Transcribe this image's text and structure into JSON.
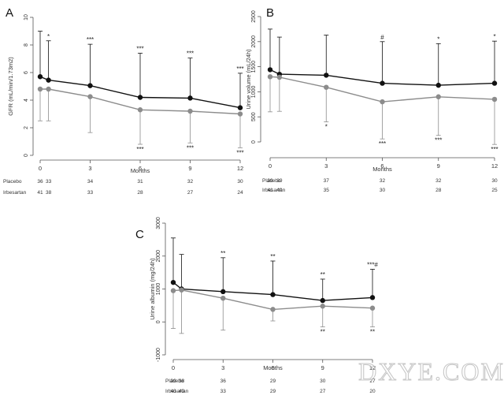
{
  "chart_data": [
    {
      "panel_label": "A",
      "type": "line",
      "xlabel": "Months",
      "ylabel": "GFR (mL/min/1.73m2)",
      "x": [
        0,
        0.5,
        3,
        6,
        9,
        12
      ],
      "xticks": [
        "0",
        "3",
        "6",
        "9",
        "12"
      ],
      "yticks": [
        "0",
        "2",
        "4",
        "6",
        "8",
        "10"
      ],
      "ylim": [
        0,
        10
      ],
      "series": [
        {
          "name": "Placebo",
          "color": "#111111",
          "mean": [
            5.7,
            5.45,
            5.05,
            4.2,
            4.15,
            3.45
          ],
          "upper": [
            9.0,
            8.3,
            8.05,
            7.4,
            7.05,
            5.95
          ],
          "lower": null
        },
        {
          "name": "Irbesartan",
          "color": "#8c8c8c",
          "mean": [
            4.8,
            4.8,
            4.25,
            3.3,
            3.2,
            3.0
          ],
          "upper": null,
          "lower": [
            2.5,
            2.5,
            1.65,
            0.8,
            0.9,
            0.55
          ]
        }
      ],
      "annotations_above": [
        "",
        "*",
        "***",
        "***",
        "***",
        "***"
      ],
      "annotations_below": [
        "",
        "",
        "",
        "***",
        "***",
        "***"
      ],
      "table": [
        {
          "label": "Placebo",
          "values": [
            "36",
            "33",
            "34",
            "31",
            "32",
            "30"
          ]
        },
        {
          "label": "Irbesartan",
          "values": [
            "41",
            "38",
            "33",
            "28",
            "27",
            "24"
          ]
        }
      ]
    },
    {
      "panel_label": "B",
      "type": "line",
      "xlabel": "Months",
      "ylabel": "Urine volume (mL/24h)",
      "x": [
        0,
        0.5,
        3,
        6,
        9,
        12
      ],
      "xticks": [
        "0",
        "3",
        "6",
        "9",
        "12"
      ],
      "yticks": [
        "0",
        "500",
        "1000",
        "1500",
        "2000",
        "2500"
      ],
      "ylim": [
        0,
        2500
      ],
      "series": [
        {
          "name": "Placebo",
          "color": "#111111",
          "mean": [
            1440,
            1350,
            1330,
            1170,
            1130,
            1170
          ],
          "upper": [
            2250,
            2090,
            2130,
            2000,
            1960,
            2010
          ],
          "lower": null
        },
        {
          "name": "Irbesartan",
          "color": "#8c8c8c",
          "mean": [
            1300,
            1290,
            1090,
            800,
            900,
            850
          ],
          "upper": null,
          "lower": [
            600,
            610,
            400,
            60,
            130,
            -50
          ]
        }
      ],
      "annotations_above": [
        "",
        "",
        "",
        "#",
        "*",
        "*"
      ],
      "annotations_below": [
        "",
        "",
        "*",
        "***",
        "***",
        "***"
      ],
      "table": [
        {
          "label": "Placebo",
          "values": [
            "39",
            "39",
            "37",
            "32",
            "32",
            "30"
          ]
        },
        {
          "label": "Irbesartan",
          "values": [
            "41",
            "40",
            "35",
            "30",
            "28",
            "25"
          ]
        }
      ]
    },
    {
      "panel_label": "C",
      "type": "line",
      "xlabel": "Months",
      "ylabel": "Urine albumin (mg/24h)",
      "x": [
        0,
        0.5,
        3,
        6,
        9,
        12
      ],
      "xticks": [
        "0",
        "3",
        "6",
        "9",
        "12"
      ],
      "yticks": [
        "-1000",
        "0",
        "1000",
        "2000",
        "3000"
      ],
      "ylim": [
        -1100,
        3000
      ],
      "series": [
        {
          "name": "Placebo",
          "color": "#111111",
          "mean": [
            1200,
            1000,
            920,
            830,
            650,
            740
          ],
          "upper": [
            2550,
            2050,
            1950,
            1850,
            1300,
            1600
          ],
          "lower": null
        },
        {
          "name": "Irbesartan",
          "color": "#8c8c8c",
          "mean": [
            950,
            970,
            720,
            380,
            480,
            420
          ],
          "upper": null,
          "lower": [
            -200,
            -350,
            -250,
            30,
            -150,
            -150
          ]
        }
      ],
      "annotations_above": [
        "",
        "",
        "**",
        "**",
        "**",
        "***#"
      ],
      "annotations_below": [
        "",
        "",
        "",
        "",
        "**",
        "**"
      ],
      "table": [
        {
          "label": "Placebo",
          "values": [
            "39",
            "38",
            "36",
            "29",
            "30",
            "27"
          ]
        },
        {
          "label": "Irbesartan",
          "values": [
            "40",
            "40",
            "33",
            "29",
            "27",
            "20"
          ]
        }
      ]
    }
  ],
  "watermark": "DXYE.COM"
}
